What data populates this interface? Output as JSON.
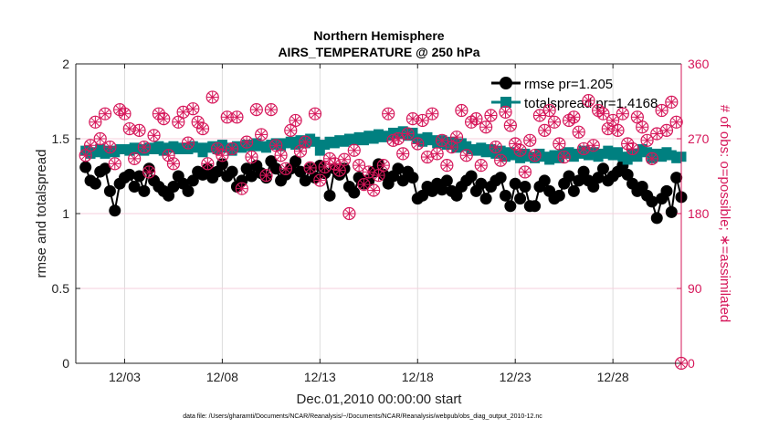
{
  "chart_data": {
    "type": "line",
    "title": [
      "Northern Hemisphere",
      "AIRS_TEMPERATURE @ 250 hPa"
    ],
    "xlabel": "Dec.01,2010 00:00:00 start",
    "ylabel": "rmse and totalspread",
    "y2label": "# of obs: o=possible; ∗=assimilated",
    "footer": "data file: /Users/gharamti/Documents/NCAR/Reanalysis/~/Documents/NCAR/Reanalysis/webpub/obs_diag_output_2010-12.nc",
    "xlim": [
      "2010-11-30T12:00",
      "2010-12-31T12:00"
    ],
    "ylim": [
      0,
      2
    ],
    "y2lim": [
      0,
      360
    ],
    "yticks": [
      "0",
      "0.5",
      "1",
      "1.5",
      "2"
    ],
    "y2ticks": [
      "0",
      "90",
      "180",
      "270",
      "360"
    ],
    "xticks": [
      {
        "label": "12/03",
        "date": "2010-12-03T00:00"
      },
      {
        "label": "12/08",
        "date": "2010-12-08T00:00"
      },
      {
        "label": "12/13",
        "date": "2010-12-13T00:00"
      },
      {
        "label": "12/18",
        "date": "2010-12-18T00:00"
      },
      {
        "label": "12/23",
        "date": "2010-12-23T00:00"
      },
      {
        "label": "12/28",
        "date": "2010-12-28T00:00"
      }
    ],
    "grid": true,
    "legend_placement": "top-right",
    "x_start": "2010-12-01T00:00",
    "x_step_hours": 6,
    "series": [
      {
        "name": "rmse pr=1.205",
        "axis": "left",
        "color": "#000000",
        "marker": "circle",
        "values": [
          1.31,
          1.22,
          1.2,
          1.28,
          1.3,
          1.15,
          1.02,
          1.2,
          1.24,
          1.26,
          1.18,
          1.25,
          1.15,
          1.3,
          1.22,
          1.18,
          1.15,
          1.12,
          1.18,
          1.25,
          1.2,
          1.15,
          1.22,
          1.28,
          1.26,
          1.3,
          1.24,
          1.28,
          1.33,
          1.25,
          1.28,
          1.18,
          1.22,
          1.3,
          1.25,
          1.32,
          1.27,
          1.24,
          1.35,
          1.3,
          1.22,
          1.26,
          1.3,
          1.35,
          1.28,
          1.22,
          1.3,
          1.24,
          1.32,
          1.27,
          1.12,
          1.3,
          1.26,
          1.3,
          1.18,
          1.14,
          1.24,
          1.2,
          1.22,
          1.28,
          1.33,
          1.26,
          1.2,
          1.25,
          1.3,
          1.22,
          1.28,
          1.24,
          1.1,
          1.12,
          1.18,
          1.15,
          1.2,
          1.16,
          1.22,
          1.15,
          1.12,
          1.18,
          1.22,
          1.25,
          1.15,
          1.2,
          1.1,
          1.18,
          1.22,
          1.24,
          1.12,
          1.05,
          1.2,
          1.1,
          1.18,
          1.05,
          1.05,
          1.18,
          1.22,
          1.15,
          1.1,
          1.12,
          1.2,
          1.25,
          1.15,
          1.22,
          1.28,
          1.22,
          1.18,
          1.24,
          1.3,
          1.22,
          1.25,
          1.28,
          1.32,
          1.26,
          1.2,
          1.15,
          1.18,
          1.12,
          1.08,
          0.97,
          1.1,
          1.15,
          1.01,
          1.24,
          1.11
        ]
      },
      {
        "name": "totalspread pr=1.4168",
        "axis": "left",
        "color": "#008080",
        "marker": "square",
        "values": [
          1.42,
          1.4,
          1.41,
          1.43,
          1.4,
          1.42,
          1.41,
          1.43,
          1.43,
          1.42,
          1.44,
          1.43,
          1.42,
          1.44,
          1.43,
          1.45,
          1.42,
          1.44,
          1.45,
          1.43,
          1.44,
          1.43,
          1.45,
          1.44,
          1.41,
          1.44,
          1.45,
          1.43,
          1.46,
          1.44,
          1.42,
          1.45,
          1.44,
          1.46,
          1.45,
          1.47,
          1.45,
          1.44,
          1.46,
          1.47,
          1.45,
          1.47,
          1.48,
          1.46,
          1.49,
          1.47,
          1.5,
          1.48,
          1.42,
          1.46,
          1.48,
          1.47,
          1.49,
          1.48,
          1.5,
          1.49,
          1.51,
          1.49,
          1.52,
          1.5,
          1.53,
          1.51,
          1.52,
          1.54,
          1.53,
          1.55,
          1.52,
          1.54,
          1.5,
          1.48,
          1.51,
          1.49,
          1.47,
          1.49,
          1.46,
          1.48,
          1.44,
          1.47,
          1.45,
          1.43,
          1.42,
          1.44,
          1.41,
          1.43,
          1.4,
          1.42,
          1.38,
          1.41,
          1.39,
          1.37,
          1.4,
          1.38,
          1.37,
          1.4,
          1.38,
          1.36,
          1.39,
          1.37,
          1.4,
          1.41,
          1.38,
          1.4,
          1.42,
          1.39,
          1.41,
          1.38,
          1.4,
          1.42,
          1.39,
          1.41,
          1.38,
          1.36,
          1.4,
          1.38,
          1.43,
          1.41,
          1.37,
          1.4,
          1.38,
          1.41,
          1.39,
          1.37,
          1.38
        ]
      },
      {
        "name": "possible",
        "axis": "right",
        "color": "#d6175a",
        "marker": "o",
        "values": [
          250,
          262,
          290,
          270,
          300,
          260,
          240,
          305,
          300,
          282,
          246,
          280,
          260,
          230,
          274,
          300,
          294,
          250,
          240,
          290,
          302,
          265,
          306,
          290,
          282,
          240,
          320,
          258,
          250,
          296,
          258,
          296,
          210,
          266,
          248,
          305,
          275,
          226,
          305,
          262,
          250,
          234,
          280,
          292,
          255,
          266,
          235,
          300,
          220,
          236,
          246,
          240,
          232,
          245,
          180,
          256,
          238,
          215,
          230,
          208,
          226,
          238,
          300,
          268,
          270,
          252,
          276,
          294,
          264,
          292,
          248,
          300,
          252,
          268,
          238,
          260,
          272,
          304,
          250,
          290,
          294,
          238,
          284,
          298,
          260,
          244,
          302,
          286,
          264,
          256,
          230,
          268,
          250,
          298,
          280,
          304,
          290,
          264,
          248,
          292,
          296,
          278,
          258,
          316,
          262,
          304,
          300,
          282,
          292,
          280,
          300,
          264,
          258,
          296,
          284,
          268,
          246,
          276,
          304,
          280,
          314,
          290,
          0
        ]
      },
      {
        "name": "assimilated",
        "axis": "right",
        "color": "#d6175a",
        "marker": "*",
        "values": [
          250,
          262,
          290,
          270,
          300,
          260,
          240,
          305,
          300,
          282,
          246,
          280,
          260,
          230,
          274,
          300,
          294,
          250,
          240,
          290,
          302,
          265,
          306,
          290,
          282,
          240,
          320,
          258,
          250,
          296,
          258,
          296,
          210,
          266,
          248,
          305,
          275,
          226,
          305,
          262,
          250,
          234,
          280,
          292,
          255,
          266,
          235,
          300,
          220,
          236,
          246,
          240,
          232,
          245,
          180,
          256,
          238,
          215,
          230,
          208,
          226,
          238,
          300,
          268,
          270,
          252,
          276,
          294,
          264,
          292,
          248,
          300,
          252,
          268,
          238,
          260,
          272,
          304,
          250,
          290,
          294,
          238,
          284,
          298,
          260,
          244,
          302,
          286,
          264,
          256,
          230,
          268,
          250,
          298,
          280,
          304,
          290,
          264,
          248,
          292,
          296,
          278,
          258,
          316,
          262,
          304,
          300,
          282,
          292,
          280,
          300,
          264,
          258,
          296,
          284,
          268,
          246,
          276,
          304,
          280,
          314,
          290,
          0
        ]
      }
    ]
  }
}
